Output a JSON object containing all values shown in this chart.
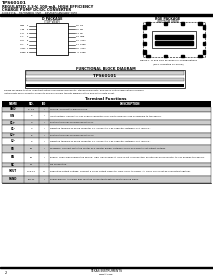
{
  "bg_color": "#ffffff",
  "title_line1": "TPS60101",
  "title_line2": "REGULATED 3.3-V, 100-mA, HIGH EFFICIENCY",
  "title_line3": "CHARGE PUMP DC/DC CONVERTER",
  "title_line4": "SLVS321A – DECEMBER 2001 – REVISED JANUARY 2002",
  "pin_diagram_title": "D PACKAGE",
  "pin_diagram_subtitle": "(TOP VIEW)",
  "pin_left": [
    "GND  1",
    "VIN  2",
    "C1+  3",
    "C1-  4",
    "C2+  5",
    "C2-  6",
    "VOUT 7",
    "PGND 8"
  ],
  "pin_right": [
    "16 FB",
    "15 EN",
    "14 NC",
    "13 GND",
    "12 VOUT",
    "11 PGND",
    "10 VOUT",
    " 9 PGND"
  ],
  "qfn_title": "RGE PACKAGE",
  "qfn_subtitle": "(BOTTOM VIEW)",
  "fig_caption1": "Figure 1. D and RGE Package Pin Configurations",
  "fig_caption2": "(Pin 1 indicated by arrow)",
  "block_title": "FUNCTIONAL BLOCK DIAGRAM",
  "block_note1": "Please be aware that an important notice concerning availability, standard warranty, and use in critical applications of Texas",
  "block_note2": "Instruments semiconductor products and disclaimers thereto appears at the end of this data sheet.",
  "terminal_title": "Terminal Functions",
  "table_rows": [
    [
      "GND",
      "1, 13",
      "I",
      "Ground. Connect to ground plane."
    ],
    [
      "VIN",
      "2",
      "I",
      "Input voltage. Connect a 1-μF bypass capacitor from VIN to GND as close as possible to the device."
    ],
    [
      "C1+",
      "3",
      "I",
      "Positive terminal of flying capacitor C1."
    ],
    [
      "C1-",
      "4",
      "I",
      "Negative terminal of flying capacitor C1. Connect a 1-μF capacitor between C1+ and C1-."
    ],
    [
      "C2+",
      "5",
      "I",
      "Positive terminal of flying capacitor C2."
    ],
    [
      "C2-",
      "6",
      "I",
      "Negative terminal of flying capacitor C2. Connect a 1-μF capacitor between C2+ and C2-."
    ],
    [
      "FB",
      "16",
      "I",
      "Feedback. Connect FB to the center of a resistor divider between VOUT and GND to set output voltage."
    ],
    [
      "EN",
      "15",
      "I",
      "Enable. Logic high enables the device, logic low disables it. If EN is left unconnected, an internal pullup resistor to VIN enables the device."
    ],
    [
      "NC",
      "14",
      "-",
      "No connection."
    ],
    [
      "VOUT",
      "7,10,12",
      "O",
      "Regulated output voltage. Connect a 10-μF output capacitor from VOUT to PGND. All VOUT pins must be connected together."
    ],
    [
      "PGND",
      "8,9,11",
      "I",
      "Power ground. All PGND pins must be connected together and to ground plane."
    ]
  ],
  "footer_page": "2",
  "footer_company": "TEXAS INSTRUMENTS",
  "footer_url": "www.ti.com"
}
